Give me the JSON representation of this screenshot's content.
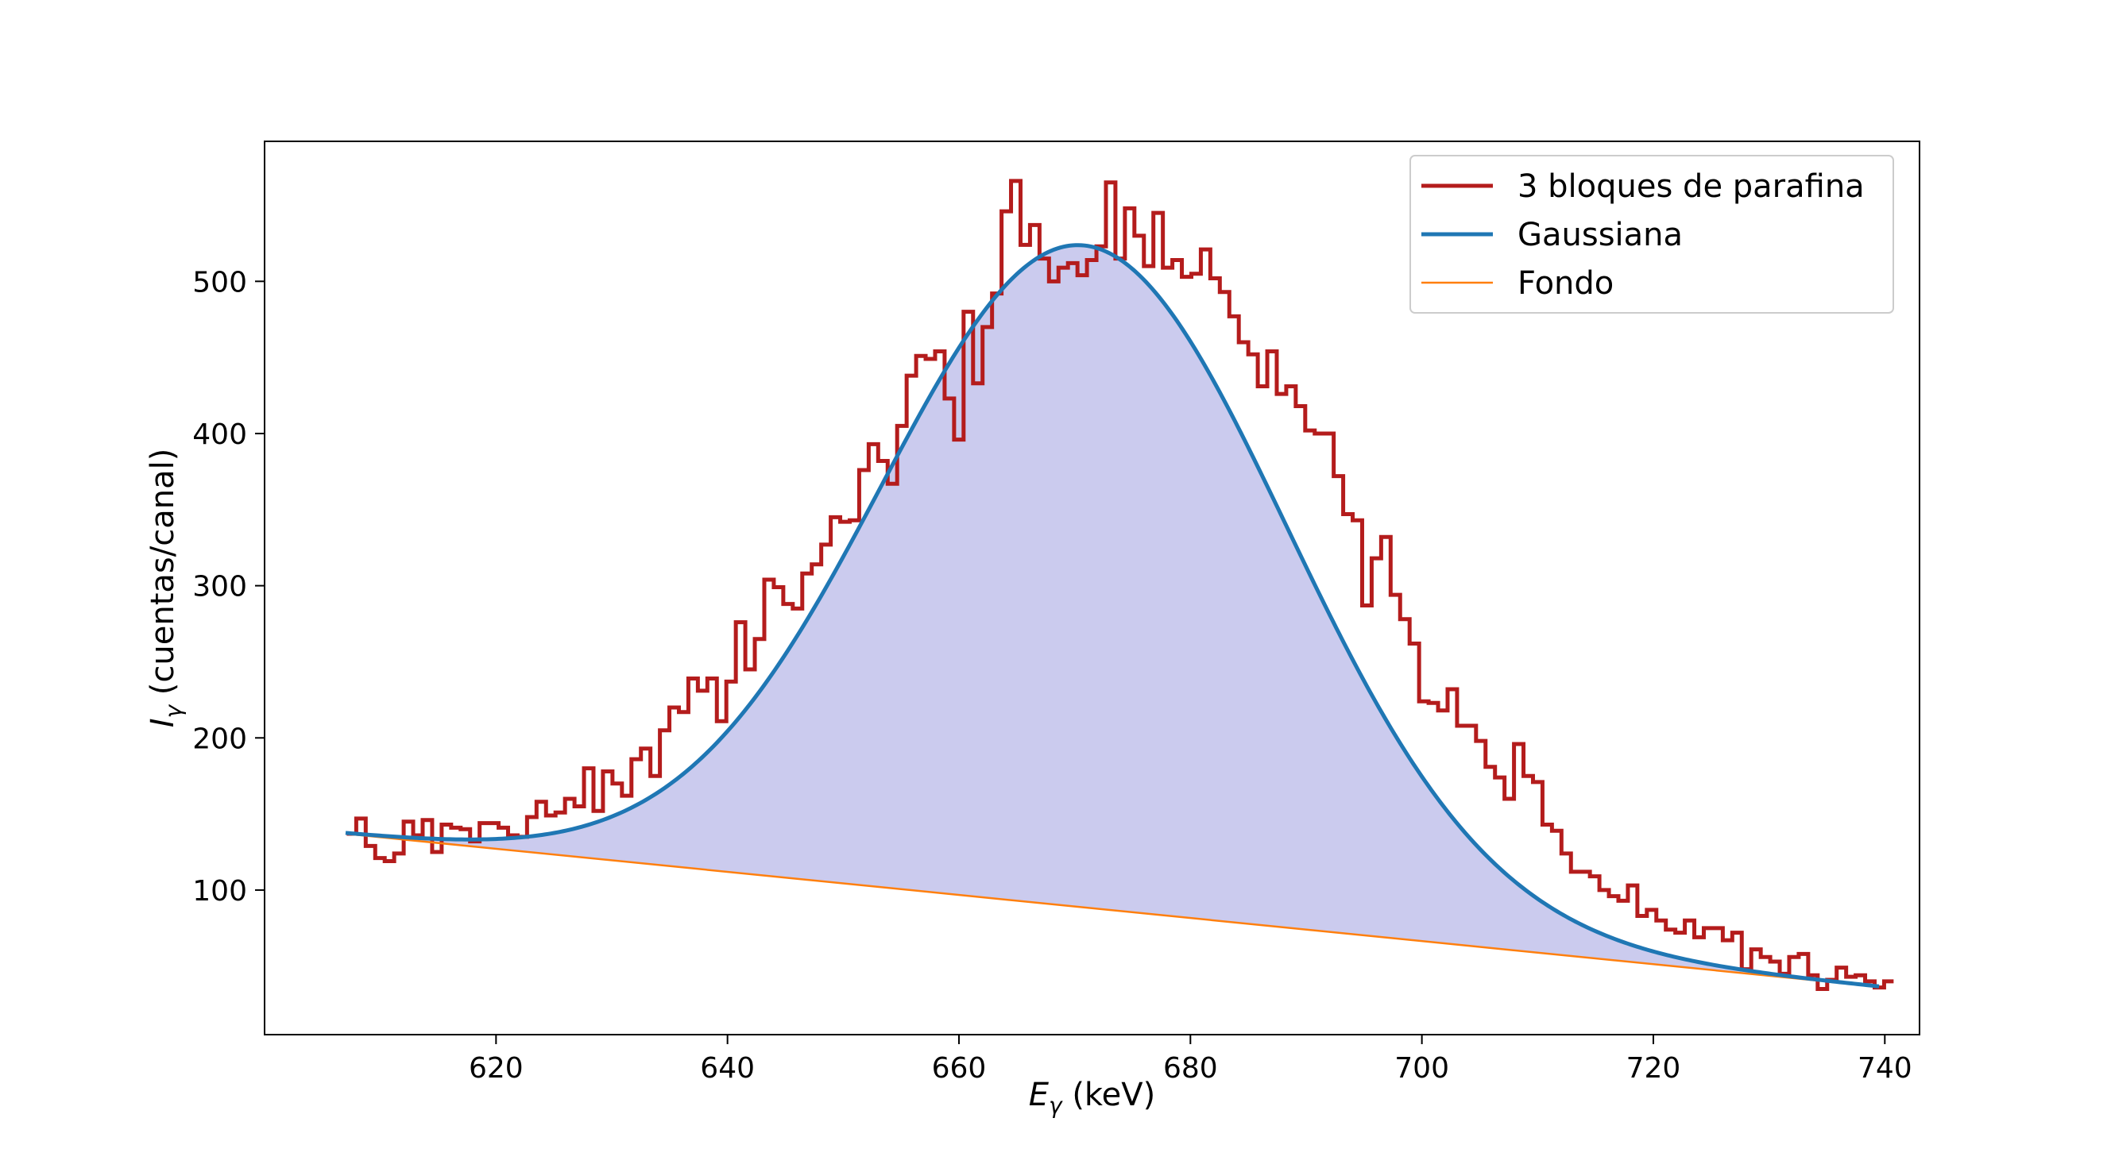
{
  "chart_data": {
    "type": "line",
    "xlabel": {
      "main": "E",
      "sub": "γ",
      "rest": " (keV)"
    },
    "ylabel": {
      "main": "I",
      "sub": "γ",
      "rest": " (cuentas/canal)"
    },
    "xlim": [
      600,
      743
    ],
    "ylim": [
      5,
      592
    ],
    "xticks": [
      620,
      640,
      660,
      680,
      700,
      720,
      740
    ],
    "yticks": [
      100,
      200,
      300,
      400,
      500
    ],
    "grid": false,
    "legend_position": "top-right",
    "colors": {
      "histogram": "#b41c1c",
      "gaussian": "#1f77b4",
      "background": "#ff7f0e",
      "fill": "#cbcbee"
    },
    "series": [
      {
        "name": "3 bloques de parafina",
        "kind": "step",
        "bin_width": 0.82,
        "x_start": 607.1,
        "y": [
          137,
          147,
          129,
          121,
          119,
          124,
          145,
          136,
          146,
          125,
          143,
          141,
          140,
          132,
          144,
          144,
          141,
          136,
          135,
          148,
          158,
          149,
          151,
          160,
          155,
          180,
          152,
          178,
          170,
          162,
          186,
          193,
          175,
          205,
          220,
          217,
          239,
          231,
          239,
          211,
          237,
          276,
          245,
          265,
          304,
          299,
          288,
          285,
          308,
          314,
          327,
          345,
          342,
          343,
          376,
          393,
          382,
          367,
          405,
          438,
          451,
          449,
          454,
          423,
          396,
          480,
          433,
          470,
          492,
          546,
          566,
          524,
          537,
          515,
          500,
          509,
          512,
          504,
          514,
          523,
          565,
          515,
          548,
          530,
          510,
          545,
          509,
          514,
          503,
          505,
          521,
          502,
          493,
          477,
          460,
          452,
          431,
          454,
          426,
          431,
          418,
          402,
          400,
          400,
          372,
          347,
          343,
          287,
          318,
          332,
          294,
          278,
          262,
          224,
          223,
          218,
          232,
          208,
          208,
          198,
          181,
          174,
          160,
          196,
          175,
          171,
          143,
          139,
          124,
          112,
          112,
          109,
          100,
          96,
          93,
          103,
          83,
          87,
          80,
          74,
          72,
          80,
          69,
          75,
          75,
          67,
          72,
          48,
          61,
          56,
          53,
          45,
          56,
          58,
          44,
          35,
          41,
          49,
          43,
          44,
          40,
          36,
          40
        ]
      },
      {
        "name": "Gaussiana",
        "kind": "gaussian_plus_linear",
        "x_range": [
          607,
          739.5
        ],
        "amplitude": 435,
        "mean": 670.8,
        "sigma": 17.5,
        "bg_intercept": 137,
        "bg_slope": -0.7585,
        "bg_x0": 607
      },
      {
        "name": "Fondo",
        "kind": "linear",
        "x": [
          607,
          739.5
        ],
        "y": [
          137,
          36.5
        ]
      }
    ]
  }
}
